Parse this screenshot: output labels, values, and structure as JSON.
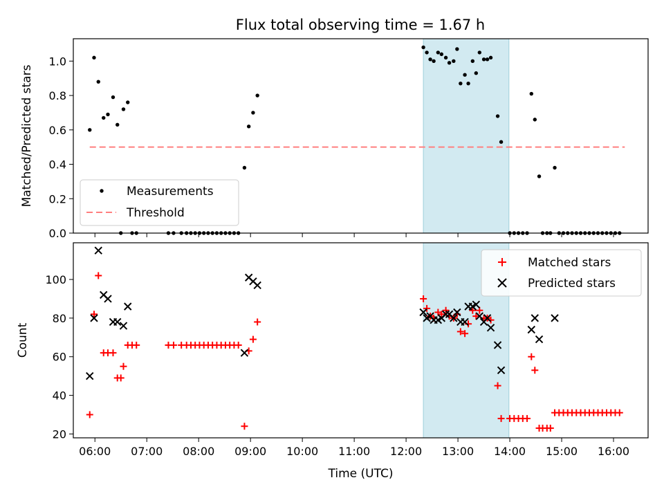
{
  "chart_data": {
    "type": "scatter",
    "title": "Flux total observing time = 1.67 h",
    "xlabel": "Time (UTC)",
    "x_ticks": [
      "06:00",
      "07:00",
      "08:00",
      "09:00",
      "10:00",
      "11:00",
      "12:00",
      "13:00",
      "14:00",
      "15:00",
      "16:00"
    ],
    "xlim": [
      "05:35",
      "16:40"
    ],
    "highlight_interval": {
      "start": "12:20",
      "end": "13:59",
      "color": "#add8e6"
    },
    "panels": [
      {
        "ylabel": "Matched/Predicted stars",
        "ylim": [
          0,
          1.13
        ],
        "y_ticks": [
          "0.0",
          "0.2",
          "0.4",
          "0.6",
          "0.8",
          "1.0"
        ],
        "y_tick_values": [
          0,
          0.2,
          0.4,
          0.6,
          0.8,
          1.0
        ],
        "legend_position": "lower-left",
        "series": [
          {
            "name": "Measurements",
            "marker": "dot",
            "color": "#000000",
            "points": [
              [
                "05:54",
                0.6
              ],
              [
                "05:59",
                1.02
              ],
              [
                "06:04",
                0.88
              ],
              [
                "06:10",
                0.67
              ],
              [
                "06:15",
                0.69
              ],
              [
                "06:21",
                0.79
              ],
              [
                "06:26",
                0.63
              ],
              [
                "06:30",
                0.0
              ],
              [
                "06:33",
                0.72
              ],
              [
                "06:38",
                0.76
              ],
              [
                "06:43",
                0.0
              ],
              [
                "06:48",
                0.0
              ],
              [
                "07:25",
                0.0
              ],
              [
                "07:31",
                0.0
              ],
              [
                "07:40",
                0.0
              ],
              [
                "07:46",
                0.0
              ],
              [
                "07:51",
                0.0
              ],
              [
                "07:56",
                0.0
              ],
              [
                "08:01",
                0.0
              ],
              [
                "08:06",
                0.0
              ],
              [
                "08:11",
                0.0
              ],
              [
                "08:16",
                0.0
              ],
              [
                "08:21",
                0.0
              ],
              [
                "08:26",
                0.0
              ],
              [
                "08:31",
                0.0
              ],
              [
                "08:36",
                0.0
              ],
              [
                "08:41",
                0.0
              ],
              [
                "08:46",
                0.0
              ],
              [
                "08:53",
                0.38
              ],
              [
                "08:58",
                0.62
              ],
              [
                "09:03",
                0.7
              ],
              [
                "09:08",
                0.8
              ],
              [
                "12:20",
                1.08
              ],
              [
                "12:24",
                1.05
              ],
              [
                "12:28",
                1.01
              ],
              [
                "12:32",
                1.0
              ],
              [
                "12:37",
                1.05
              ],
              [
                "12:41",
                1.04
              ],
              [
                "12:46",
                1.02
              ],
              [
                "12:50",
                0.99
              ],
              [
                "12:55",
                1.0
              ],
              [
                "12:59",
                1.07
              ],
              [
                "13:03",
                0.87
              ],
              [
                "13:08",
                0.92
              ],
              [
                "13:12",
                0.87
              ],
              [
                "13:17",
                1.0
              ],
              [
                "13:21",
                0.93
              ],
              [
                "13:25",
                1.05
              ],
              [
                "13:30",
                1.01
              ],
              [
                "13:34",
                1.01
              ],
              [
                "13:38",
                1.02
              ],
              [
                "13:46",
                0.68
              ],
              [
                "13:50",
                0.53
              ],
              [
                "14:00",
                0.0
              ],
              [
                "14:05",
                0.0
              ],
              [
                "14:10",
                0.0
              ],
              [
                "14:15",
                0.0
              ],
              [
                "14:20",
                0.0
              ],
              [
                "14:25",
                0.81
              ],
              [
                "14:29",
                0.66
              ],
              [
                "14:34",
                0.33
              ],
              [
                "14:38",
                0.0
              ],
              [
                "14:43",
                0.0
              ],
              [
                "14:47",
                0.0
              ],
              [
                "14:52",
                0.38
              ],
              [
                "14:57",
                0.0
              ],
              [
                "15:02",
                0.0
              ],
              [
                "15:07",
                0.0
              ],
              [
                "15:12",
                0.0
              ],
              [
                "15:17",
                0.0
              ],
              [
                "15:22",
                0.0
              ],
              [
                "15:27",
                0.0
              ],
              [
                "15:32",
                0.0
              ],
              [
                "15:37",
                0.0
              ],
              [
                "15:42",
                0.0
              ],
              [
                "15:47",
                0.0
              ],
              [
                "15:52",
                0.0
              ],
              [
                "15:57",
                0.0
              ],
              [
                "16:02",
                0.0
              ],
              [
                "16:07",
                0.0
              ]
            ]
          },
          {
            "name": "Threshold",
            "marker": "dashed-line",
            "color": "#ff7f7f",
            "points": [
              [
                "05:54",
                0.5
              ],
              [
                "16:13",
                0.5
              ]
            ]
          }
        ]
      },
      {
        "ylabel": "Count",
        "ylim": [
          18,
          119
        ],
        "y_ticks": [
          "20",
          "40",
          "60",
          "80",
          "100"
        ],
        "y_tick_values": [
          20,
          40,
          60,
          80,
          100
        ],
        "legend_position": "upper-right",
        "series": [
          {
            "name": "Matched stars",
            "marker": "plus",
            "color": "#ff0000",
            "points": [
              [
                "05:54",
                30
              ],
              [
                "05:59",
                82
              ],
              [
                "06:04",
                102
              ],
              [
                "06:10",
                62
              ],
              [
                "06:15",
                62
              ],
              [
                "06:21",
                62
              ],
              [
                "06:26",
                49
              ],
              [
                "06:30",
                49
              ],
              [
                "06:33",
                55
              ],
              [
                "06:38",
                66
              ],
              [
                "06:43",
                66
              ],
              [
                "06:48",
                66
              ],
              [
                "07:25",
                66
              ],
              [
                "07:31",
                66
              ],
              [
                "07:40",
                66
              ],
              [
                "07:46",
                66
              ],
              [
                "07:51",
                66
              ],
              [
                "07:56",
                66
              ],
              [
                "08:01",
                66
              ],
              [
                "08:06",
                66
              ],
              [
                "08:11",
                66
              ],
              [
                "08:16",
                66
              ],
              [
                "08:21",
                66
              ],
              [
                "08:26",
                66
              ],
              [
                "08:31",
                66
              ],
              [
                "08:36",
                66
              ],
              [
                "08:41",
                66
              ],
              [
                "08:46",
                66
              ],
              [
                "08:53",
                24
              ],
              [
                "08:58",
                63
              ],
              [
                "09:03",
                69
              ],
              [
                "09:08",
                78
              ],
              [
                "12:20",
                90
              ],
              [
                "12:24",
                85
              ],
              [
                "12:28",
                81
              ],
              [
                "12:32",
                80
              ],
              [
                "12:37",
                83
              ],
              [
                "12:41",
                82
              ],
              [
                "12:46",
                84
              ],
              [
                "12:50",
                81
              ],
              [
                "12:55",
                80
              ],
              [
                "12:59",
                82
              ],
              [
                "13:03",
                73
              ],
              [
                "13:08",
                72
              ],
              [
                "13:12",
                77
              ],
              [
                "13:17",
                84
              ],
              [
                "13:21",
                81
              ],
              [
                "13:25",
                84
              ],
              [
                "13:30",
                80
              ],
              [
                "13:34",
                80
              ],
              [
                "13:38",
                79
              ],
              [
                "13:46",
                45
              ],
              [
                "13:50",
                28
              ],
              [
                "14:00",
                28
              ],
              [
                "14:05",
                28
              ],
              [
                "14:10",
                28
              ],
              [
                "14:15",
                28
              ],
              [
                "14:20",
                28
              ],
              [
                "14:25",
                60
              ],
              [
                "14:29",
                53
              ],
              [
                "14:34",
                23
              ],
              [
                "14:38",
                23
              ],
              [
                "14:43",
                23
              ],
              [
                "14:47",
                23
              ],
              [
                "14:52",
                31
              ],
              [
                "14:57",
                31
              ],
              [
                "15:02",
                31
              ],
              [
                "15:07",
                31
              ],
              [
                "15:12",
                31
              ],
              [
                "15:17",
                31
              ],
              [
                "15:22",
                31
              ],
              [
                "15:27",
                31
              ],
              [
                "15:32",
                31
              ],
              [
                "15:37",
                31
              ],
              [
                "15:42",
                31
              ],
              [
                "15:47",
                31
              ],
              [
                "15:52",
                31
              ],
              [
                "15:57",
                31
              ],
              [
                "16:02",
                31
              ],
              [
                "16:07",
                31
              ]
            ]
          },
          {
            "name": "Predicted stars",
            "marker": "x",
            "color": "#000000",
            "points": [
              [
                "05:54",
                50
              ],
              [
                "05:59",
                80
              ],
              [
                "06:04",
                115
              ],
              [
                "06:10",
                92
              ],
              [
                "06:15",
                90
              ],
              [
                "06:21",
                78
              ],
              [
                "06:26",
                78
              ],
              [
                "06:33",
                76
              ],
              [
                "06:38",
                86
              ],
              [
                "08:53",
                62
              ],
              [
                "08:58",
                101
              ],
              [
                "09:03",
                99
              ],
              [
                "09:08",
                97
              ],
              [
                "12:20",
                83
              ],
              [
                "12:24",
                80
              ],
              [
                "12:28",
                81
              ],
              [
                "12:32",
                79
              ],
              [
                "12:37",
                79
              ],
              [
                "12:41",
                80
              ],
              [
                "12:46",
                82
              ],
              [
                "12:50",
                82
              ],
              [
                "12:55",
                80
              ],
              [
                "12:59",
                83
              ],
              [
                "13:03",
                78
              ],
              [
                "13:08",
                78
              ],
              [
                "13:12",
                86
              ],
              [
                "13:17",
                86
              ],
              [
                "13:21",
                87
              ],
              [
                "13:25",
                81
              ],
              [
                "13:30",
                78
              ],
              [
                "13:34",
                80
              ],
              [
                "13:38",
                75
              ],
              [
                "13:46",
                66
              ],
              [
                "13:50",
                53
              ],
              [
                "14:25",
                74
              ],
              [
                "14:29",
                80
              ],
              [
                "14:34",
                69
              ],
              [
                "14:52",
                80
              ]
            ]
          }
        ]
      }
    ]
  }
}
